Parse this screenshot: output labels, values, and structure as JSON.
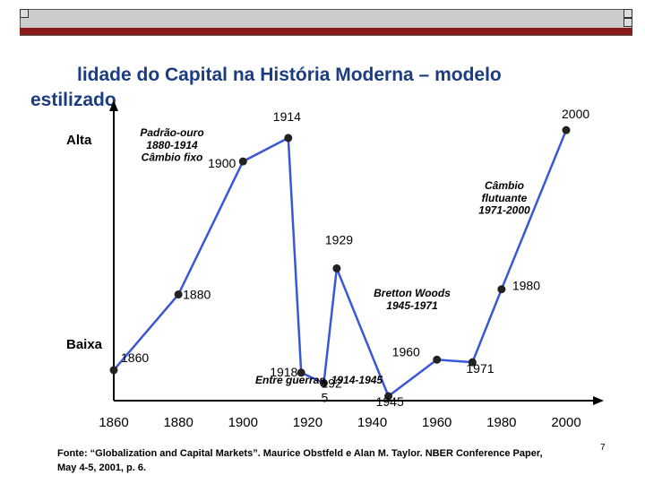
{
  "title_line1": "lidade do Capital na História Moderna – modelo",
  "title_line2": "estilizado",
  "source_line1": "Fonte: “Globalization and Capital Markets”. Maurice Obstfeld e Alan M. Taylor. NBER Conference Paper,",
  "source_line2": "May 4-5, 2001, p. 6.",
  "page_number": "7",
  "colors": {
    "header_bar": "#cccccc",
    "header_stripe": "#8b1a1a",
    "title": "#1c3c80",
    "line": "#3a57d6"
  },
  "chart_data": {
    "type": "line",
    "x": [
      1860,
      1880,
      1900,
      1914,
      1918,
      1925,
      1929,
      1945,
      1960,
      1971,
      1980,
      2000
    ],
    "y": [
      0.1,
      0.39,
      0.9,
      0.99,
      0.09,
      0.05,
      0.49,
      0.0,
      0.14,
      0.13,
      0.41,
      1.02
    ],
    "xlim": [
      1860,
      2000
    ],
    "ylim": [
      0,
      1
    ],
    "x_ticks": [
      "1860",
      "1880",
      "1900",
      "1920",
      "1940",
      "1960",
      "1980",
      "2000"
    ],
    "y_labels": {
      "high": "Alta",
      "low": "Baixa"
    },
    "point_labels": [
      "1860",
      "1880",
      "1900",
      "1914",
      "1918",
      "192\n5",
      "1929",
      "1945",
      "1960",
      "1971",
      "1980",
      "2000"
    ],
    "annotations": [
      {
        "text": "Padrão-ouro\n1880-1914\nCâmbio fixo"
      },
      {
        "text": "Bretton Woods\n1945-1971"
      },
      {
        "text": "Câmbio\nflutuante\n1971-2000"
      },
      {
        "text": "Entre guerras, 1914-1945"
      }
    ],
    "grid": false,
    "legend": "none"
  }
}
